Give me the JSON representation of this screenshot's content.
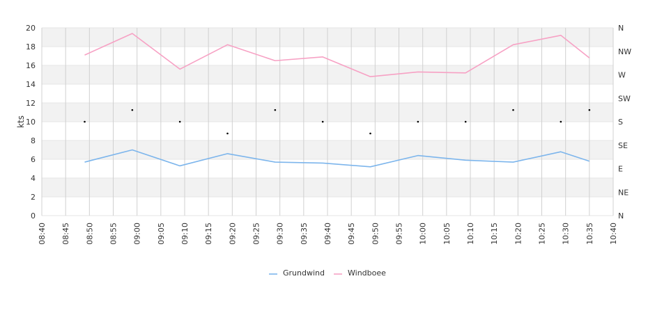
{
  "chart_data": {
    "type": "line",
    "ylabel": "kts",
    "ylim": [
      0,
      20
    ],
    "y_ticks": [
      "0",
      "2",
      "4",
      "6",
      "8",
      "10",
      "12",
      "14",
      "16",
      "18",
      "20"
    ],
    "x_ticks": [
      "08:40",
      "08:45",
      "08:50",
      "08:55",
      "09:00",
      "09:05",
      "09:10",
      "09:15",
      "09:20",
      "09:25",
      "09:30",
      "09:35",
      "09:40",
      "09:45",
      "09:50",
      "09:55",
      "10:00",
      "10:05",
      "10:10",
      "10:15",
      "10:20",
      "10:25",
      "10:30",
      "10:35",
      "10:40"
    ],
    "x": [
      "08:49",
      "08:59",
      "09:09",
      "09:19",
      "09:29",
      "09:39",
      "09:49",
      "09:59",
      "10:09",
      "10:19",
      "10:29",
      "10:35"
    ],
    "direction_axis": {
      "labels": [
        "N",
        "NE",
        "E",
        "SE",
        "S",
        "SW",
        "W",
        "NW",
        "N"
      ]
    },
    "series": [
      {
        "name": "Grundwind",
        "color": "#7cb5ec",
        "values": [
          5.7,
          7.0,
          5.3,
          6.6,
          5.7,
          5.6,
          5.2,
          6.4,
          5.9,
          5.7,
          6.8,
          5.8
        ]
      },
      {
        "name": "Windboee",
        "color": "#f7a1c4",
        "values": [
          17.1,
          19.4,
          15.6,
          18.2,
          16.5,
          16.9,
          14.8,
          15.3,
          15.2,
          18.2,
          19.2,
          16.8
        ]
      }
    ],
    "direction_points": [
      "S",
      "SSW",
      "S",
      "SSE",
      "SSW",
      "S",
      "SSE",
      "S",
      "S",
      "SSW",
      "S",
      "SSW"
    ],
    "grid": true,
    "legend_position": "bottom-center"
  }
}
